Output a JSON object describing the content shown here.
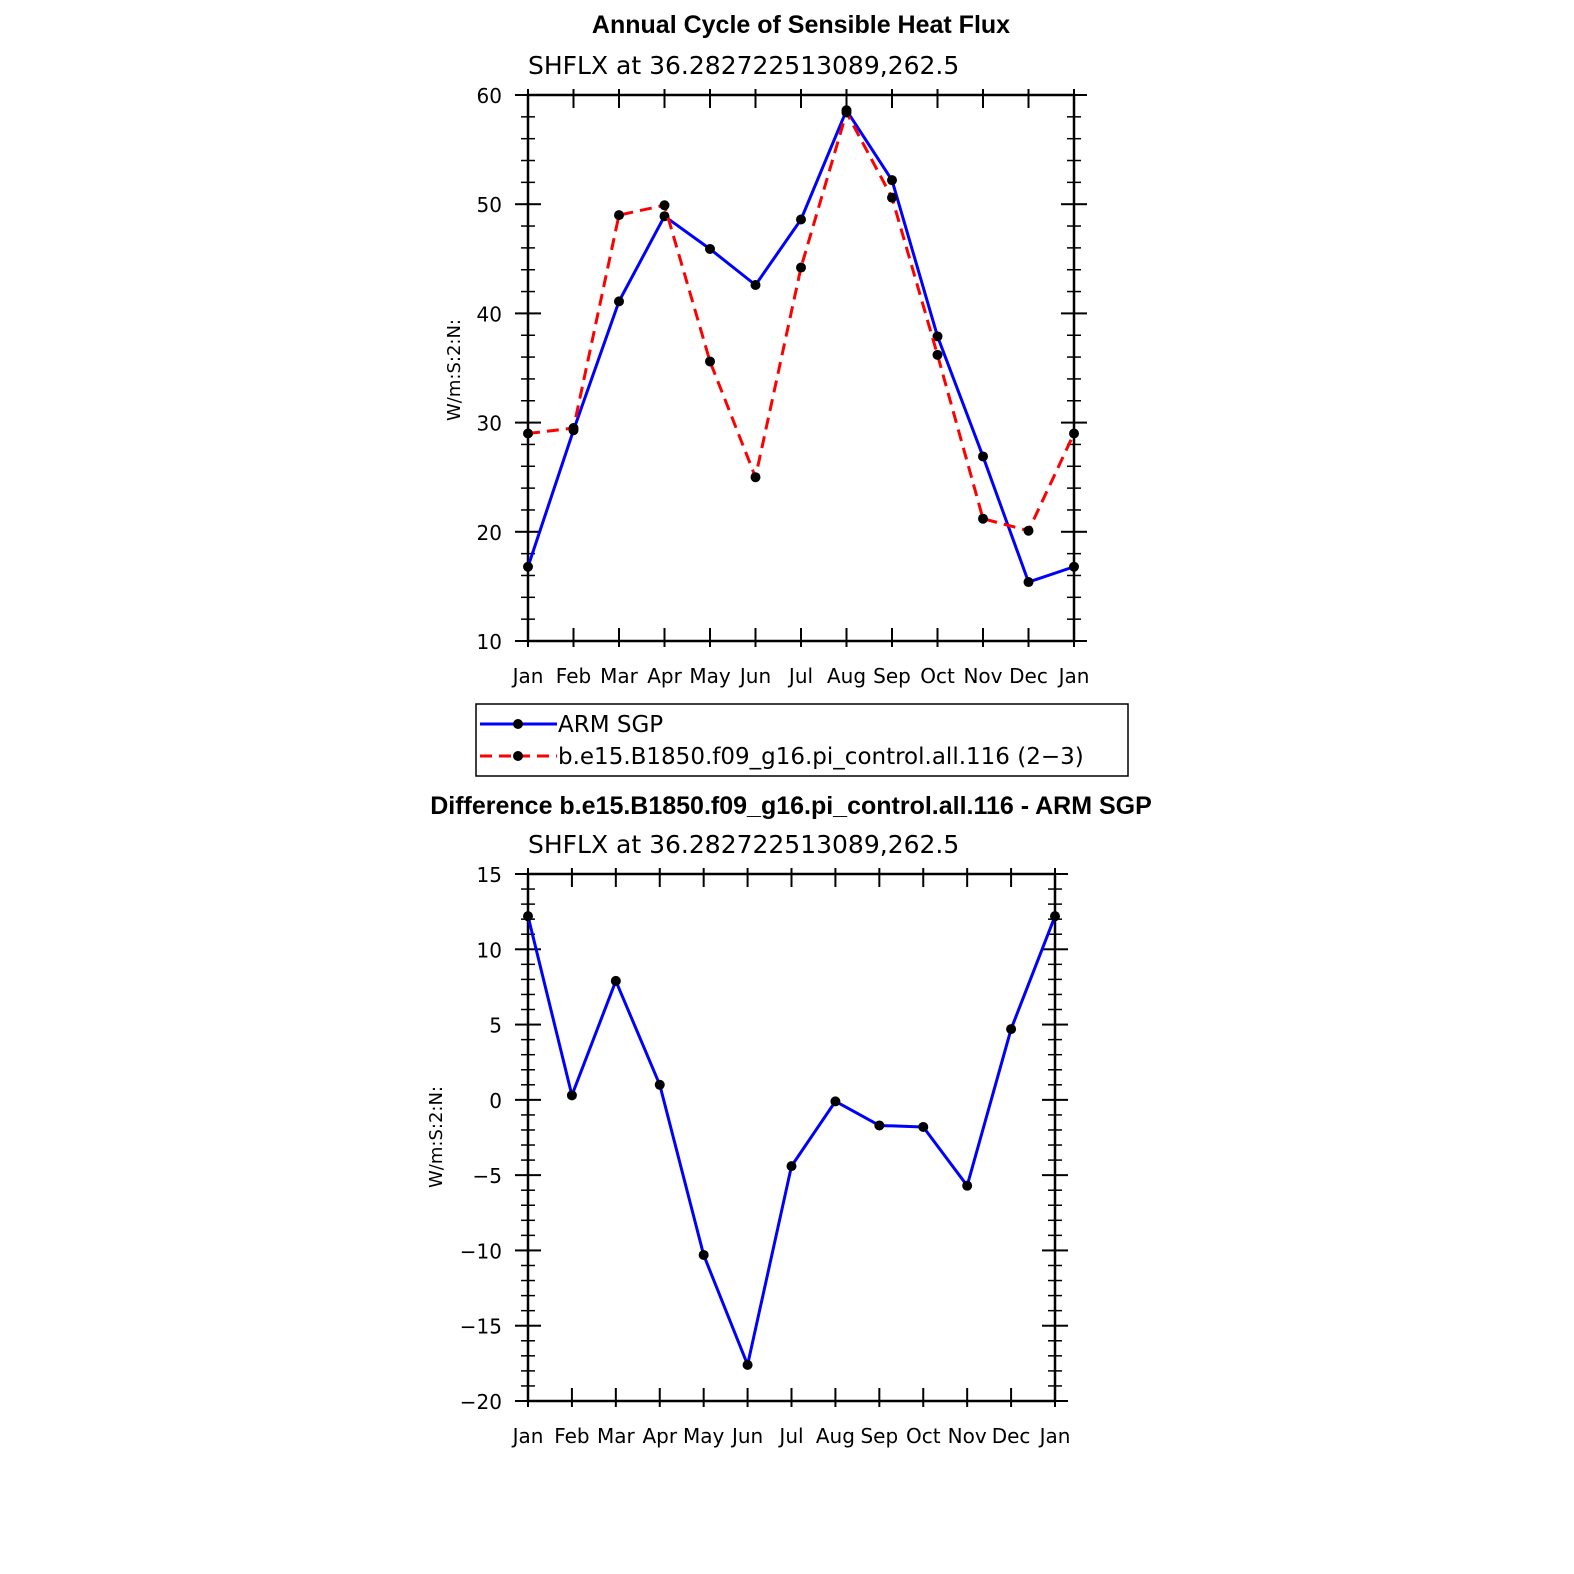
{
  "chart_data": [
    {
      "type": "line",
      "title": "Annual Cycle of Sensible Heat Flux",
      "subtitle": "SHFLX  at  36.282722513089,262.5",
      "xlabel": "",
      "ylabel": "W/m:S:2:N:",
      "categories": [
        "Jan",
        "Feb",
        "Mar",
        "Apr",
        "May",
        "Jun",
        "Jul",
        "Aug",
        "Sep",
        "Oct",
        "Nov",
        "Dec",
        "Jan"
      ],
      "ylim": [
        10,
        60
      ],
      "yticks": [
        "10",
        "20",
        "30",
        "40",
        "50",
        "60"
      ],
      "series": [
        {
          "name": "ARM  SGP",
          "color": "#0000ff",
          "dash": "solid",
          "values": [
            16.8,
            29.3,
            41.1,
            48.9,
            45.9,
            42.6,
            48.6,
            58.6,
            52.2,
            37.9,
            26.9,
            15.4,
            16.8
          ]
        },
        {
          "name": "b.e15.B1850.f09_g16.pi_control.all.116  (2−3)",
          "color": "#ff0000",
          "dash": "dashed",
          "values": [
            29.0,
            29.5,
            49.0,
            49.9,
            35.6,
            25.0,
            44.2,
            58.4,
            50.6,
            36.2,
            21.2,
            20.1,
            29.0
          ]
        }
      ]
    },
    {
      "type": "line",
      "title": "Difference b.e15.B1850.f09_g16.pi_control.all.116 - ARM SGP",
      "subtitle": "SHFLX  at  36.282722513089,262.5",
      "xlabel": "",
      "ylabel": "W/m:S:2:N:",
      "categories": [
        "Jan",
        "Feb",
        "Mar",
        "Apr",
        "May",
        "Jun",
        "Jul",
        "Aug",
        "Sep",
        "Oct",
        "Nov",
        "Dec",
        "Jan"
      ],
      "ylim": [
        -20,
        15
      ],
      "yticks": [
        "−20",
        "−15",
        "−10",
        "−5",
        "0",
        "5",
        "10",
        "15"
      ],
      "series": [
        {
          "name": "Difference",
          "color": "#0000ff",
          "dash": "solid",
          "values": [
            12.2,
            0.3,
            7.9,
            1.0,
            -10.3,
            -17.6,
            -4.4,
            -0.1,
            -1.7,
            -1.8,
            -5.7,
            4.7,
            12.2
          ]
        }
      ]
    }
  ]
}
